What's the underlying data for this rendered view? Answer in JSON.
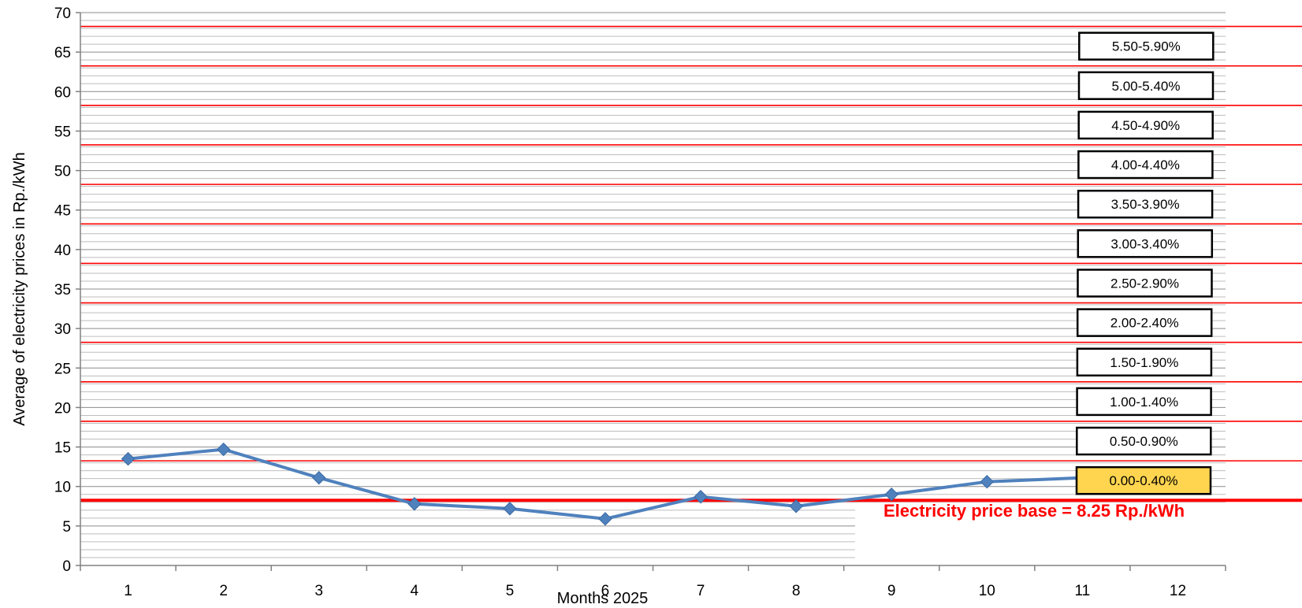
{
  "chart_data": {
    "type": "line",
    "title": "",
    "xlabel": "Months 2025",
    "ylabel": "Average of electricity prices in Rp./kWh",
    "ylim": [
      0,
      70
    ],
    "y_ticks": [
      "0",
      "5",
      "10",
      "15",
      "20",
      "25",
      "30",
      "35",
      "40",
      "45",
      "50",
      "55",
      "60",
      "65",
      "70"
    ],
    "categories": [
      "1",
      "2",
      "3",
      "4",
      "5",
      "6",
      "7",
      "8",
      "9",
      "10",
      "11",
      "12"
    ],
    "series": [
      {
        "values": [
          13.5,
          14.7,
          11.1,
          7.8,
          7.2,
          5.9,
          8.7,
          7.5,
          9.0,
          10.6,
          11.1,
          null
        ]
      }
    ],
    "base_line": {
      "value": 8.25,
      "label": "Electricity price base = 8.25 Rp./kWh"
    },
    "threshold_lines": [
      13.25,
      18.25,
      23.25,
      28.25,
      33.25,
      38.25,
      43.25,
      48.25,
      53.25,
      58.25,
      63.25,
      68.25
    ],
    "bands": [
      {
        "label": "0.00-0.40%",
        "highlighted": true
      },
      {
        "label": "0.50-0.90%",
        "highlighted": false
      },
      {
        "label": "1.00-1.40%",
        "highlighted": false
      },
      {
        "label": "1.50-1.90%",
        "highlighted": false
      },
      {
        "label": "2.00-2.40%",
        "highlighted": false
      },
      {
        "label": "2.50-2.90%",
        "highlighted": false
      },
      {
        "label": "3.00-3.40%",
        "highlighted": false
      },
      {
        "label": "3.50-3.90%",
        "highlighted": false
      },
      {
        "label": "4.00-4.40%",
        "highlighted": false
      },
      {
        "label": "4.50-4.90%",
        "highlighted": false
      },
      {
        "label": "5.00-5.40%",
        "highlighted": false
      },
      {
        "label": "5.50-5.90%",
        "highlighted": false
      }
    ],
    "grid": true,
    "minor_grid_step": 1,
    "colors": {
      "series": "#4f81bd",
      "threshold": "#ff0000",
      "base": "#ff0000",
      "grid": "#999999",
      "highlight": "#ffd54f",
      "annotation": "#ff0000"
    }
  }
}
